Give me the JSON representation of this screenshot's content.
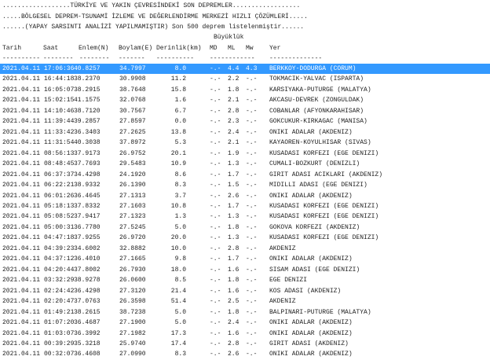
{
  "banner": [
    "..................TÜRKİYE VE YAKIN ÇEVRESİNDEKİ SON DEPREMLER..................",
    ".....BÖLGESEL DEPREM-TSUNAMİ İZLEME VE DEĞERLENDİRME MERKEZİ HIZLI ÇÖZÜMLERİ.....",
    "......(YAPAY SARSINTI ANALİZİ YAPILMAMIŞTIR) Son 500 deprem listelenmiştir......"
  ],
  "magnitude_group_label": "Büyüklük",
  "columns": {
    "date": "Tarih",
    "time": "Saat",
    "lat": "Enlem(N)",
    "lon": "Boylam(E)",
    "depth": "Derinlik(km)",
    "md": "MD",
    "ml": "ML",
    "mw": "Mw",
    "place": "Yer"
  },
  "separators": [
    "----------",
    "--------",
    "--------",
    "-------",
    "----------",
    "------------",
    "--------------"
  ],
  "selected_row": 0,
  "rows": [
    [
      "2021.04.11",
      "17:06:36",
      "40.8257",
      "34.7997",
      "8.0",
      "-.-",
      "4.4",
      "4.3",
      "BERKKOY-DODURGA (CORUM)"
    ],
    [
      "2021.04.11",
      "16:44:18",
      "38.2370",
      "30.9908",
      "11.2",
      "-.-",
      "2.2",
      "-.-",
      "TOKMACIK-YALVAC (ISPARTA)"
    ],
    [
      "2021.04.11",
      "16:05:07",
      "38.2915",
      "38.7648",
      "15.8",
      "-.-",
      "1.8",
      "-.-",
      "KARSIYAKA-PUTURGE (MALATYA)"
    ],
    [
      "2021.04.11",
      "15:02:15",
      "41.1575",
      "32.0768",
      "1.6",
      "-.-",
      "2.1",
      "-.-",
      "AKCASU-DEVREK (ZONGULDAK)"
    ],
    [
      "2021.04.11",
      "14:10:46",
      "38.7120",
      "30.7567",
      "6.7",
      "-.-",
      "2.8",
      "-.-",
      "COBANLAR (AFYONKARAHISAR)"
    ],
    [
      "2021.04.11",
      "11:39:44",
      "39.2857",
      "27.8597",
      "0.0",
      "-.-",
      "2.3",
      "-.-",
      "GOKCUKUR-KIRKAGAC (MANISA)"
    ],
    [
      "2021.04.11",
      "11:33:42",
      "36.3403",
      "27.2625",
      "13.8",
      "-.-",
      "2.4",
      "-.-",
      "ONIKI ADALAR (AKDENIZ)"
    ],
    [
      "2021.04.11",
      "11:31:54",
      "40.3038",
      "37.8972",
      "5.3",
      "-.-",
      "2.1",
      "-.-",
      "KAYAOREN-KOYULHISAR (SIVAS)"
    ],
    [
      "2021.04.11",
      "08:56:13",
      "37.9173",
      "26.9752",
      "20.1",
      "-.-",
      "1.9",
      "-.-",
      "KUSADASI KORFEZI (EGE DENIZI)"
    ],
    [
      "2021.04.11",
      "08:48:45",
      "37.7693",
      "29.5483",
      "10.9",
      "-.-",
      "1.3",
      "-.-",
      "CUMALI-BOZKURT (DENIZLI)"
    ],
    [
      "2021.04.11",
      "06:37:37",
      "34.4298",
      "24.1920",
      "8.6",
      "-.-",
      "1.7",
      "-.-",
      "GIRIT ADASI ACIKLARI (AKDENIZ)"
    ],
    [
      "2021.04.11",
      "06:22:21",
      "38.9332",
      "26.1390",
      "8.3",
      "-.-",
      "1.5",
      "-.-",
      "MIDILLI ADASI (EGE DENIZI)"
    ],
    [
      "2021.04.11",
      "06:01:26",
      "36.4645",
      "27.1313",
      "3.7",
      "-.-",
      "2.6",
      "-.-",
      "ONIKI ADALAR (AKDENIZ)"
    ],
    [
      "2021.04.11",
      "05:18:13",
      "37.8332",
      "27.1603",
      "10.8",
      "-.-",
      "1.7",
      "-.-",
      "KUSADASI KORFEZI (EGE DENIZI)"
    ],
    [
      "2021.04.11",
      "05:08:52",
      "37.9417",
      "27.1323",
      "1.3",
      "-.-",
      "1.3",
      "-.-",
      "KUSADASI KORFEZI (EGE DENIZI)"
    ],
    [
      "2021.04.11",
      "05:00:31",
      "36.7780",
      "27.5245",
      "5.0",
      "-.-",
      "1.8",
      "-.-",
      "GOKOVA KORFEZI (AKDENIZ)"
    ],
    [
      "2021.04.11",
      "04:47:18",
      "37.9255",
      "26.9720",
      "20.0",
      "-.-",
      "1.3",
      "-.-",
      "KUSADASI KORFEZI (EGE DENIZI)"
    ],
    [
      "2021.04.11",
      "04:39:23",
      "34.6002",
      "32.8882",
      "10.0",
      "-.-",
      "2.8",
      "-.-",
      "AKDENIZ"
    ],
    [
      "2021.04.11",
      "04:37:12",
      "36.4010",
      "27.1665",
      "9.8",
      "-.-",
      "1.7",
      "-.-",
      "ONIKI ADALAR (AKDENIZ)"
    ],
    [
      "2021.04.11",
      "04:20:44",
      "37.8002",
      "26.7930",
      "18.0",
      "-.-",
      "1.6",
      "-.-",
      "SISAM ADASI (EGE DENIZI)"
    ],
    [
      "2021.04.11",
      "03:32:29",
      "38.9278",
      "26.0600",
      "8.5",
      "-.-",
      "1.8",
      "-.-",
      "EGE DENIZI"
    ],
    [
      "2021.04.11",
      "02:24:42",
      "36.4298",
      "27.3120",
      "21.4",
      "-.-",
      "1.6",
      "-.-",
      "KOS ADASI (AKDENIZ)"
    ],
    [
      "2021.04.11",
      "02:20:47",
      "37.0763",
      "26.3598",
      "51.4",
      "-.-",
      "2.5",
      "-.-",
      "AKDENIZ"
    ],
    [
      "2021.04.11",
      "01:49:21",
      "38.2615",
      "38.7238",
      "5.0",
      "-.-",
      "1.8",
      "-.-",
      "BALPINARI-PUTURGE (MALATYA)"
    ],
    [
      "2021.04.11",
      "01:07:20",
      "36.4687",
      "27.1900",
      "5.0",
      "-.-",
      "2.4",
      "-.-",
      "ONIKI ADALAR (AKDENIZ)"
    ],
    [
      "2021.04.11",
      "01:03:07",
      "36.3992",
      "27.1982",
      "17.3",
      "-.-",
      "1.6",
      "-.-",
      "ONIKI ADALAR (AKDENIZ)"
    ],
    [
      "2021.04.11",
      "00:39:29",
      "35.3218",
      "25.9740",
      "17.4",
      "-.-",
      "2.8",
      "-.-",
      "GIRIT ADASI (AKDENIZ)"
    ],
    [
      "2021.04.11",
      "00:32:07",
      "36.4608",
      "27.0990",
      "8.3",
      "-.-",
      "2.6",
      "-.-",
      "ONIKI ADALAR (AKDENIZ)"
    ]
  ],
  "colors": {
    "selection": "#3399ff",
    "selection_text": "#ffffff",
    "text": "#222222"
  }
}
